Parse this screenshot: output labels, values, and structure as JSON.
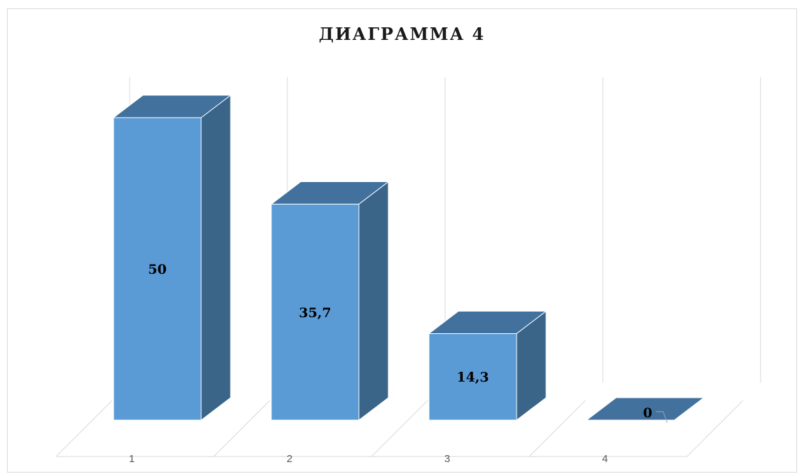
{
  "chart_data": {
    "type": "bar",
    "title": "ДИАГРАММА 4",
    "categories": [
      "1",
      "2",
      "3",
      "4"
    ],
    "values": [
      50,
      35.7,
      14.3,
      0
    ],
    "value_labels": [
      "50",
      "35,7",
      "14,3",
      "0"
    ],
    "ylim": [
      0,
      50
    ],
    "grid": true,
    "legend": "none",
    "style": "3d-column"
  },
  "colors": {
    "bar_front": "#5b9bd5",
    "bar_side": "#3a6589",
    "bar_top": "#41719c",
    "bar_edge": "#ffffff",
    "grid": "#d9d9d9",
    "tick_text": "#595959"
  }
}
